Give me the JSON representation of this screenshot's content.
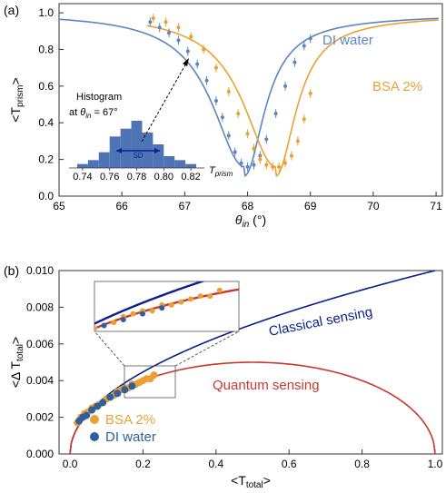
{
  "colors": {
    "blue": "#5b86c0",
    "orange": "#eba034",
    "navy": "#0b1f8f",
    "red": "#c8392b",
    "hist": "#4f74b5",
    "sd_arrow": "#0b1f8f"
  },
  "chart_data": [
    {
      "type": "scatter",
      "panel_label": "(a)",
      "xlabel_main": "θ",
      "xlabel_sub": "in",
      "xlabel_unit": " (°)",
      "ylabel_main": "<T",
      "ylabel_sub": "prism",
      "ylabel_end": ">",
      "xlim": [
        65,
        71.1
      ],
      "ylim": [
        0,
        1.05
      ],
      "xticks": [
        "65",
        "66",
        "67",
        "68",
        "69",
        "70",
        "71"
      ],
      "yticks": [
        "0.0",
        "0.2",
        "0.4",
        "0.6",
        "0.8",
        "1.0"
      ],
      "series": [
        {
          "name": "DI water",
          "color": "blue",
          "fit": {
            "min_x": 67.95,
            "width": 0.62,
            "depth": 0.84,
            "base": 1.0,
            "asym": 0.62
          },
          "x": [
            66.45,
            66.6,
            66.75,
            66.9,
            67.05,
            67.2,
            67.35,
            67.5,
            67.6,
            67.7,
            67.8,
            67.9,
            68.0,
            68.1,
            68.2,
            68.3,
            68.45,
            68.6,
            68.75,
            68.9,
            69.0
          ],
          "y": [
            0.95,
            0.92,
            0.89,
            0.85,
            0.79,
            0.72,
            0.63,
            0.52,
            0.43,
            0.33,
            0.24,
            0.18,
            0.16,
            0.17,
            0.22,
            0.31,
            0.45,
            0.6,
            0.73,
            0.82,
            0.86
          ]
        },
        {
          "name": "BSA 2%",
          "color": "orange",
          "fit": {
            "min_x": 68.45,
            "width": 0.62,
            "depth": 0.84,
            "base": 1.0,
            "asym": 0.62
          },
          "x": [
            66.5,
            66.7,
            66.9,
            67.1,
            67.3,
            67.5,
            67.7,
            67.85,
            68.0,
            68.1,
            68.2,
            68.3,
            68.4,
            68.5,
            68.6,
            68.7,
            68.8,
            68.9,
            69.0
          ],
          "y": [
            0.97,
            0.95,
            0.92,
            0.87,
            0.8,
            0.7,
            0.57,
            0.45,
            0.34,
            0.26,
            0.2,
            0.17,
            0.16,
            0.16,
            0.18,
            0.22,
            0.3,
            0.42,
            0.56
          ]
        }
      ],
      "inset_histogram": {
        "title_line1": "Histogram",
        "title_line2_prefix": "at ",
        "title_line2_theta": "θ",
        "title_line2_sub": "in",
        "title_line2_suffix": " = 67°",
        "xlabel_main": "T",
        "xlabel_sub": "prism",
        "sd_label": "SD",
        "xticks": [
          "0.74",
          "0.76",
          "0.78",
          "0.80",
          "0.82"
        ],
        "xlim": [
          0.73,
          0.83
        ],
        "bins": [
          0.736,
          0.744,
          0.752,
          0.76,
          0.768,
          0.776,
          0.784,
          0.792,
          0.8,
          0.808,
          0.816,
          0.824
        ],
        "counts": [
          1,
          2,
          4,
          8,
          10,
          12,
          9,
          6,
          3,
          2,
          1
        ]
      }
    },
    {
      "type": "line",
      "panel_label": "(b)",
      "xlabel_main": "<T",
      "xlabel_sub": "total",
      "xlabel_end": ">",
      "ylabel_main": "<Δ T",
      "ylabel_sub": "total",
      "ylabel_end": ">",
      "xlim": [
        -0.03,
        1.02
      ],
      "ylim": [
        0,
        0.01
      ],
      "xticks": [
        "0.0",
        "0.2",
        "0.4",
        "0.6",
        "0.8",
        "1.0"
      ],
      "yticks": [
        "0.000",
        "0.002",
        "0.004",
        "0.006",
        "0.008",
        "0.010"
      ],
      "curves": [
        {
          "name": "Classical sensing",
          "color": "navy",
          "model": "sqrt_t"
        },
        {
          "name": "Quantum sensing",
          "color": "red",
          "model": "sqrt_t_1mt"
        }
      ],
      "series": [
        {
          "name": "BSA 2%",
          "color": "orange",
          "x": [
            0.02,
            0.03,
            0.04,
            0.05,
            0.06,
            0.07,
            0.08,
            0.1,
            0.12,
            0.13,
            0.14,
            0.15,
            0.16,
            0.17,
            0.18,
            0.19,
            0.2,
            0.21,
            0.22,
            0.23
          ],
          "y": [
            0.0017,
            0.002,
            0.0022,
            0.0023,
            0.0025,
            0.0026,
            0.0027,
            0.003,
            0.0032,
            0.0034,
            0.0035,
            0.0036,
            0.0036,
            0.0038,
            0.0038,
            0.0039,
            0.004,
            0.0041,
            0.0041,
            0.0043
          ]
        },
        {
          "name": "DI water",
          "color": "blue",
          "x": [
            0.025,
            0.035,
            0.045,
            0.06,
            0.075,
            0.09,
            0.11,
            0.13,
            0.15,
            0.17
          ],
          "y": [
            0.0018,
            0.002,
            0.0021,
            0.0024,
            0.0026,
            0.0028,
            0.0031,
            0.0033,
            0.0035,
            0.0037
          ]
        }
      ]
    }
  ]
}
